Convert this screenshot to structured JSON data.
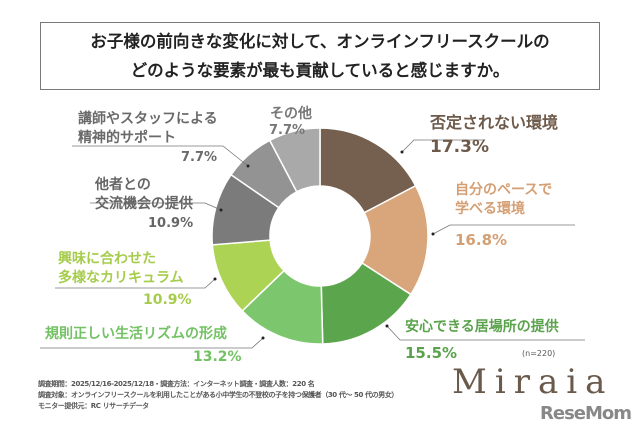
{
  "title": {
    "line1": "お子様の前向きな変化に対して、オンラインフリースクールの",
    "line2": "どのような要素が最も貢献していると感じますか。"
  },
  "chart_data": {
    "type": "pie",
    "donut": true,
    "start": "top",
    "direction": "clockwise",
    "slices": [
      {
        "label": "否定されない環境",
        "value": 17.3,
        "value_label": "17.3%",
        "color": "#75604f"
      },
      {
        "label": "自分のペースで学べる環境",
        "value": 16.8,
        "value_label": "16.8%",
        "color": "#d9a67c"
      },
      {
        "label": "安心できる居場所の提供",
        "value": 15.5,
        "value_label": "15.5%",
        "color": "#5ba64d"
      },
      {
        "label": "規則正しい生活リズムの形成",
        "value": 13.2,
        "value_label": "13.2%",
        "color": "#7cc76d"
      },
      {
        "label": "興味に合わせた多様なカリキュラム",
        "value": 10.9,
        "value_label": "10.9%",
        "color": "#acd354"
      },
      {
        "label": "他者との交流機会の提供",
        "value": 10.9,
        "value_label": "10.9%",
        "color": "#7b7b7b"
      },
      {
        "label": "講師やスタッフによる精神的サポート",
        "value": 7.7,
        "value_label": "7.7%",
        "color": "#939393"
      },
      {
        "label": "その他",
        "value": 7.7,
        "value_label": "7.7%",
        "color": "#a9a9a9"
      }
    ],
    "label_lines": {
      "s0": [
        "否定されない環境"
      ],
      "s1": [
        "自分のペースで",
        "学べる環境"
      ],
      "s2": [
        "安心できる居場所の提供"
      ],
      "s3": [
        "規則正しい生活リズムの形成"
      ],
      "s4": [
        "興味に合わせた",
        "多様なカリキュラム"
      ],
      "s5": [
        "他者との",
        "交流機会の提供"
      ],
      "s6": [
        "講師やスタッフによる",
        "精神的サポート"
      ],
      "s7": [
        "その他"
      ]
    },
    "label_colors": {
      "s0": "#6e5a4a",
      "s1": "#d59f74",
      "s2": "#5aa24b",
      "s3": "#72c163",
      "s4": "#a6cc4c",
      "s5": "#666666",
      "s6": "#6a6a6a",
      "s7": "#777777"
    },
    "sample_size": "(n=220)"
  },
  "notes": [
    "調査期間：2025/12/16-2025/12/18・調査方法：インターネット調査・調査人数：220 名",
    "調査対象：オンラインフリースクールを利用したことがある小中学生の不登校の子を持つ保護者（30 代～ 50 代の男女）",
    "モニター提供元：RC リサーチデータ"
  ],
  "logo": "Miraia",
  "watermark": "ReseMom"
}
